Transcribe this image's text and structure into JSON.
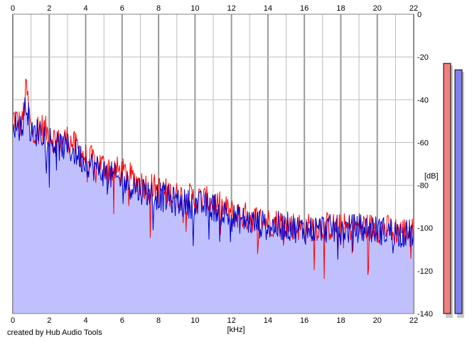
{
  "footer": "created by Hub Audio Tools",
  "colors": {
    "background": "#ffffff",
    "plot_bg": "#ffffff",
    "fill": "#c0c0ff",
    "red_series": "#ff0000",
    "blue_series": "#0000cc",
    "grid": "#bbbbbb",
    "major_grid": "#999999",
    "meter_red": "#f08080",
    "meter_blue": "#8080f0"
  },
  "meters": {
    "red_level_db": -23,
    "blue_level_db": -26
  },
  "chart_data": {
    "type": "line",
    "title": "",
    "xlabel": "[kHz]",
    "ylabel": "[dB]",
    "xlim": [
      0,
      22
    ],
    "ylim": [
      -140,
      0
    ],
    "x_ticks": [
      "0",
      "2",
      "4",
      "6",
      "8",
      "10",
      "12",
      "14",
      "16",
      "18",
      "20",
      "22"
    ],
    "y_ticks": [
      "0",
      "-20",
      "-40",
      "-60",
      "-80",
      "-100",
      "-120",
      "-140"
    ],
    "grid": true,
    "series": [
      {
        "color": "#ff0000",
        "x": [
          0,
          0.5,
          0.75,
          1,
          1.5,
          2,
          2.5,
          3,
          4,
          5,
          6,
          7,
          8,
          9,
          10,
          11,
          12,
          13,
          14,
          15,
          16,
          17,
          18,
          19,
          20,
          21,
          22
        ],
        "values": [
          -48,
          -52,
          -34,
          -55,
          -52,
          -56,
          -60,
          -58,
          -67,
          -71,
          -74,
          -79,
          -82,
          -85,
          -86,
          -88,
          -93,
          -95,
          -97,
          -98,
          -100,
          -99,
          -100,
          -99,
          -100,
          -101,
          -102
        ]
      },
      {
        "color": "#0000cc",
        "x": [
          0,
          0.5,
          0.75,
          1,
          1.5,
          2,
          2.5,
          3,
          4,
          5,
          6,
          7,
          8,
          9,
          10,
          11,
          12,
          13,
          14,
          15,
          16,
          17,
          18,
          19,
          20,
          21,
          22
        ],
        "values": [
          -50,
          -54,
          -40,
          -57,
          -54,
          -58,
          -62,
          -62,
          -69,
          -74,
          -78,
          -82,
          -85,
          -88,
          -89,
          -90,
          -95,
          -97,
          -99,
          -99,
          -101,
          -100,
          -101,
          -100,
          -101,
          -102,
          -103
        ]
      }
    ]
  }
}
